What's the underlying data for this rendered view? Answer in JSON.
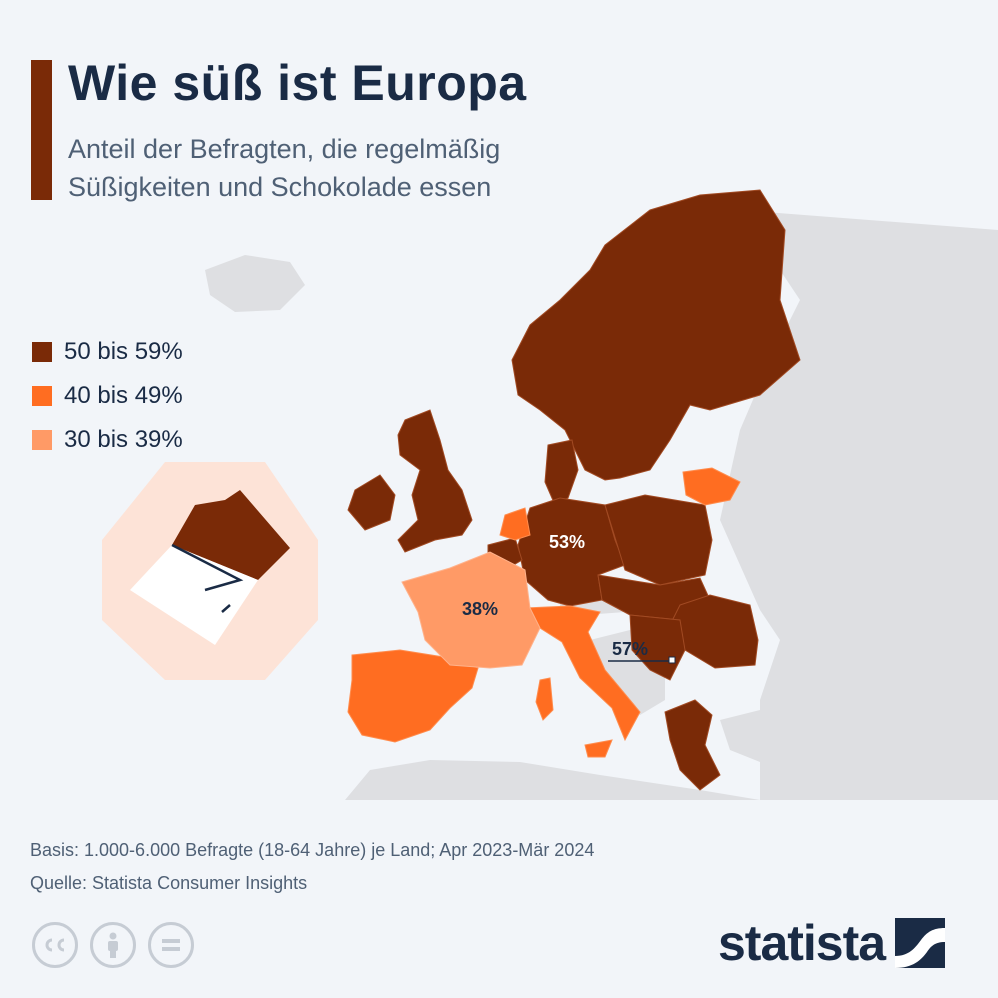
{
  "header": {
    "title": "Wie süß ist Europa",
    "subtitle_line1": "Anteil der Befragten, die regelmäßig",
    "subtitle_line2": "Süßigkeiten und Schokolade essen"
  },
  "legend": [
    {
      "label": "50 bis 59%",
      "color": "#7a2a07"
    },
    {
      "label": "40 bis 49%",
      "color": "#ff6d21"
    },
    {
      "label": "30 bis 39%",
      "color": "#ff9a66"
    }
  ],
  "map": {
    "background_land_color": "#dedfe2",
    "inset_background_color": "#fde3d7",
    "labels": {
      "germany": "53%",
      "france": "38%",
      "balkans": "57%"
    }
  },
  "footer": {
    "basis": "Basis: 1.000-6.000 Befragte (18-64 Jahre) je Land; Apr 2023-Mär 2024",
    "source": "Quelle: Statista Consumer Insights"
  },
  "license_icons": [
    "cc-icon",
    "attribution-icon",
    "no-derivatives-icon"
  ],
  "logo": {
    "text": "statista"
  }
}
